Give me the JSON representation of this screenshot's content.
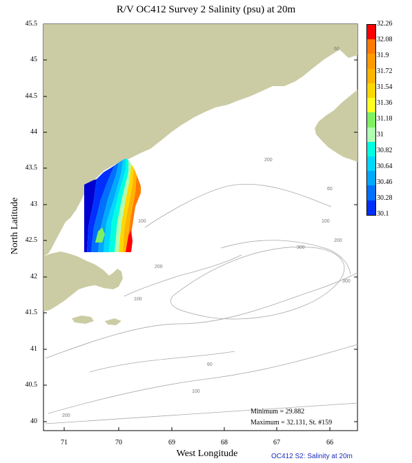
{
  "title": "R/V OC412 Survey 2 Salinity (psu) at 20m",
  "xlabel": "West Longitude",
  "ylabel": "North Latitude",
  "footer": "OC412  S2: Salinity at 20m",
  "stats": {
    "minimum": "Minimum = 29.882",
    "maximum": "Maximum = 32.131, St. #159"
  },
  "axes": {
    "lat_ticks": [
      "45.5",
      "45",
      "44.5",
      "44",
      "43.5",
      "43",
      "42.5",
      "42",
      "41.5",
      "41",
      "40.5",
      "40"
    ],
    "lon_ticks": [
      "71",
      "70",
      "69",
      "68",
      "67",
      "66"
    ],
    "lat_range": [
      39.85,
      45.5
    ],
    "lon_range": [
      71.45,
      65.5
    ]
  },
  "colorbar": {
    "labels": [
      "32.26",
      "32.08",
      "31.9",
      "31.72",
      "31.54",
      "31.36",
      "31.18",
      "31",
      "30.82",
      "30.64",
      "30.46",
      "30.28",
      "30.1"
    ],
    "colors": [
      "#ff0000",
      "#ff7a00",
      "#ff9a00",
      "#ffb400",
      "#ffd700",
      "#ffff20",
      "#7ff060",
      "#b0ffb0",
      "#00ffe0",
      "#00d8ff",
      "#00a8ff",
      "#0070ff",
      "#0030ff",
      "#0000d0"
    ]
  },
  "isobath_labels": [
    "60",
    "200",
    "100",
    "200",
    "60",
    "300",
    "100",
    "200",
    "300",
    "100",
    "60",
    "100",
    "200"
  ],
  "colors": {
    "land": "#cccca4",
    "contour": "#a8a8a8",
    "footer_text": "#1a2bb8"
  }
}
